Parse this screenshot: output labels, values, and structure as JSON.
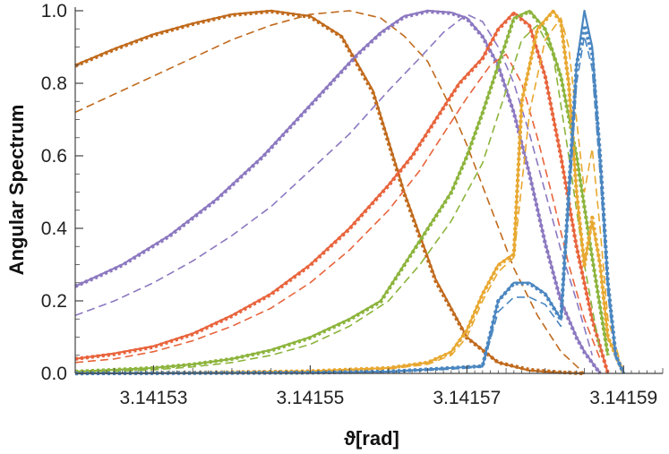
{
  "chart_data": {
    "type": "line",
    "title": "",
    "xlabel": "ϑ[rad]",
    "ylabel": "Angular Spectrum",
    "xlim": [
      3.14152,
      3.141595
    ],
    "ylim": [
      0,
      1.0
    ],
    "x_ticks": [
      {
        "value": 3.14153,
        "label": "3.14153"
      },
      {
        "value": 3.14155,
        "label": "3.14155"
      },
      {
        "value": 3.14157,
        "label": "3.14157"
      },
      {
        "value": 3.14159,
        "label": "3.14159"
      }
    ],
    "y_ticks": [
      {
        "value": 0.0,
        "label": "0.0"
      },
      {
        "value": 0.2,
        "label": "0.2"
      },
      {
        "value": 0.4,
        "label": "0.4"
      },
      {
        "value": 0.6,
        "label": "0.6"
      },
      {
        "value": 0.8,
        "label": "0.8"
      },
      {
        "value": 1.0,
        "label": "1.0"
      }
    ],
    "grid": false,
    "legend": "none",
    "series": [
      {
        "color": "#c06a1c",
        "style": "solid",
        "x": [
          3.14152,
          3.141525,
          3.14153,
          3.141535,
          3.14154,
          3.141545,
          3.14155,
          3.141554,
          3.141558,
          3.141562,
          3.141566,
          3.14157,
          3.141574,
          3.141578,
          3.141582,
          3.141585
        ],
        "y": [
          0.85,
          0.895,
          0.935,
          0.965,
          0.99,
          1.0,
          0.985,
          0.93,
          0.78,
          0.5,
          0.26,
          0.1,
          0.03,
          0.008,
          0.002,
          0.0
        ]
      },
      {
        "color": "#c06a1c",
        "style": "dotted",
        "x": [
          3.14152,
          3.141525,
          3.14153,
          3.141535,
          3.14154,
          3.141545,
          3.14155,
          3.141554,
          3.141558,
          3.141562,
          3.141566,
          3.14157,
          3.141574,
          3.141578,
          3.141582,
          3.141585
        ],
        "y": [
          0.848,
          0.893,
          0.933,
          0.963,
          0.988,
          0.998,
          0.983,
          0.928,
          0.775,
          0.495,
          0.255,
          0.098,
          0.03,
          0.01,
          0.003,
          0.0
        ]
      },
      {
        "color": "#c06a1c",
        "style": "dashed",
        "x": [
          3.14152,
          3.141525,
          3.14153,
          3.141535,
          3.14154,
          3.141545,
          3.14155,
          3.141555,
          3.141559,
          3.141562,
          3.141565,
          3.141568,
          3.14157,
          3.141573,
          3.141576,
          3.141579,
          3.141582,
          3.141585
        ],
        "y": [
          0.72,
          0.77,
          0.82,
          0.87,
          0.92,
          0.96,
          0.99,
          1.0,
          0.98,
          0.93,
          0.86,
          0.73,
          0.63,
          0.46,
          0.29,
          0.16,
          0.06,
          0.0
        ]
      },
      {
        "color": "#8c78c0",
        "style": "solid",
        "x": [
          3.14152,
          3.141523,
          3.141526,
          3.141529,
          3.141532,
          3.141535,
          3.141538,
          3.141541,
          3.141544,
          3.141547,
          3.14155,
          3.141553,
          3.141556,
          3.141559,
          3.141562,
          3.141565,
          3.141568,
          3.14157,
          3.141572,
          3.141574,
          3.141576,
          3.141578,
          3.14158,
          3.141582,
          3.141584,
          3.141585,
          3.141587
        ],
        "y": [
          0.24,
          0.27,
          0.3,
          0.34,
          0.38,
          0.43,
          0.48,
          0.54,
          0.6,
          0.67,
          0.74,
          0.81,
          0.88,
          0.94,
          0.985,
          1.0,
          0.995,
          0.98,
          0.93,
          0.85,
          0.72,
          0.55,
          0.36,
          0.2,
          0.1,
          0.06,
          0.0
        ]
      },
      {
        "color": "#8c78c0",
        "style": "dotted",
        "x": [
          3.14152,
          3.141523,
          3.141526,
          3.141529,
          3.141532,
          3.141535,
          3.141538,
          3.141541,
          3.141544,
          3.141547,
          3.14155,
          3.141553,
          3.141556,
          3.141559,
          3.141562,
          3.141565,
          3.141568,
          3.14157,
          3.141572,
          3.141574,
          3.141576,
          3.141578,
          3.14158,
          3.141582,
          3.141584,
          3.141585,
          3.141587
        ],
        "y": [
          0.24,
          0.268,
          0.298,
          0.338,
          0.378,
          0.428,
          0.478,
          0.538,
          0.598,
          0.668,
          0.738,
          0.808,
          0.878,
          0.938,
          0.983,
          0.998,
          0.993,
          0.978,
          0.928,
          0.848,
          0.718,
          0.548,
          0.358,
          0.198,
          0.098,
          0.058,
          0.0
        ]
      },
      {
        "color": "#8c78c0",
        "style": "dashed",
        "x": [
          3.14152,
          3.141525,
          3.14153,
          3.141535,
          3.14154,
          3.141545,
          3.14155,
          3.141555,
          3.14156,
          3.141564,
          3.141567,
          3.14157,
          3.141572,
          3.141574,
          3.141576,
          3.141578,
          3.14158,
          3.141582,
          3.141584,
          3.141586
        ],
        "y": [
          0.16,
          0.2,
          0.25,
          0.31,
          0.38,
          0.46,
          0.56,
          0.66,
          0.78,
          0.87,
          0.94,
          0.99,
          0.97,
          0.9,
          0.8,
          0.66,
          0.5,
          0.34,
          0.2,
          0.05
        ]
      },
      {
        "color": "#e8643c",
        "style": "solid",
        "x": [
          3.14152,
          3.141525,
          3.14153,
          3.141535,
          3.14154,
          3.141545,
          3.14155,
          3.141555,
          3.14156,
          3.141563,
          3.141566,
          3.141569,
          3.141572,
          3.141574,
          3.141576,
          3.141578,
          3.14158,
          3.141582,
          3.141584,
          3.141586,
          3.141588
        ],
        "y": [
          0.04,
          0.055,
          0.075,
          0.11,
          0.16,
          0.22,
          0.3,
          0.4,
          0.52,
          0.6,
          0.7,
          0.8,
          0.87,
          0.95,
          0.995,
          0.96,
          0.82,
          0.6,
          0.35,
          0.15,
          0.0
        ]
      },
      {
        "color": "#e8643c",
        "style": "dotted",
        "x": [
          3.14152,
          3.141525,
          3.14153,
          3.141535,
          3.14154,
          3.141545,
          3.14155,
          3.141555,
          3.14156,
          3.141563,
          3.141566,
          3.141569,
          3.141572,
          3.141574,
          3.141576,
          3.141578,
          3.14158,
          3.141582,
          3.141584,
          3.141586,
          3.141588
        ],
        "y": [
          0.04,
          0.053,
          0.073,
          0.108,
          0.158,
          0.218,
          0.298,
          0.398,
          0.518,
          0.598,
          0.698,
          0.798,
          0.868,
          0.948,
          0.993,
          0.958,
          0.818,
          0.598,
          0.348,
          0.148,
          0.0
        ]
      },
      {
        "color": "#e8643c",
        "style": "dashed",
        "x": [
          3.14152,
          3.141525,
          3.14153,
          3.141535,
          3.14154,
          3.141545,
          3.14155,
          3.141555,
          3.14156,
          3.141564,
          3.141567,
          3.14157,
          3.141573,
          3.141575,
          3.141577,
          3.141579,
          3.141581,
          3.141583,
          3.141585,
          3.141587
        ],
        "y": [
          0.03,
          0.04,
          0.06,
          0.09,
          0.13,
          0.18,
          0.25,
          0.34,
          0.45,
          0.56,
          0.66,
          0.76,
          0.85,
          0.88,
          0.8,
          0.65,
          0.48,
          0.3,
          0.15,
          0.04
        ]
      },
      {
        "color": "#8cb43c",
        "style": "solid",
        "x": [
          3.14152,
          3.141525,
          3.14153,
          3.141535,
          3.14154,
          3.141545,
          3.14155,
          3.141555,
          3.141559,
          3.141562,
          3.141565,
          3.141568,
          3.14157,
          3.141572,
          3.141574,
          3.141576,
          3.141578,
          3.14158,
          3.141582,
          3.141584,
          3.141586,
          3.141588
        ],
        "y": [
          0.005,
          0.01,
          0.015,
          0.025,
          0.04,
          0.065,
          0.1,
          0.15,
          0.2,
          0.3,
          0.4,
          0.5,
          0.6,
          0.72,
          0.85,
          0.98,
          1.0,
          0.95,
          0.82,
          0.6,
          0.32,
          0.05
        ]
      },
      {
        "color": "#8cb43c",
        "style": "dotted",
        "x": [
          3.14152,
          3.141525,
          3.14153,
          3.141535,
          3.14154,
          3.141545,
          3.14155,
          3.141555,
          3.141559,
          3.141562,
          3.141565,
          3.141568,
          3.14157,
          3.141572,
          3.141574,
          3.141576,
          3.141578,
          3.14158,
          3.141582,
          3.141584,
          3.141586,
          3.141588
        ],
        "y": [
          0.005,
          0.01,
          0.015,
          0.025,
          0.04,
          0.063,
          0.098,
          0.148,
          0.198,
          0.298,
          0.398,
          0.498,
          0.598,
          0.718,
          0.848,
          0.978,
          0.998,
          0.948,
          0.818,
          0.598,
          0.318,
          0.05
        ]
      },
      {
        "color": "#8cb43c",
        "style": "dashed",
        "x": [
          3.14152,
          3.141525,
          3.14153,
          3.141535,
          3.14154,
          3.141545,
          3.14155,
          3.141555,
          3.14156,
          3.141564,
          3.141568,
          3.141572,
          3.141575,
          3.141577,
          3.141579,
          3.141581,
          3.141583,
          3.141585,
          3.141587
        ],
        "y": [
          0.003,
          0.006,
          0.01,
          0.018,
          0.03,
          0.05,
          0.08,
          0.13,
          0.2,
          0.3,
          0.42,
          0.58,
          0.78,
          0.92,
          0.96,
          0.88,
          0.6,
          0.3,
          0.06
        ]
      },
      {
        "color": "#e8a830",
        "style": "solid",
        "x": [
          3.14152,
          3.141535,
          3.14155,
          3.14156,
          3.141565,
          3.141568,
          3.14157,
          3.141572,
          3.141574,
          3.141576,
          3.141577,
          3.141579,
          3.141581,
          3.141582,
          3.141583,
          3.141584,
          3.141585,
          3.141586,
          3.141587,
          3.141588,
          3.14159
        ],
        "y": [
          0.0,
          0.002,
          0.006,
          0.015,
          0.03,
          0.06,
          0.12,
          0.22,
          0.3,
          0.33,
          0.75,
          0.95,
          1.0,
          0.97,
          0.8,
          0.5,
          0.3,
          0.42,
          0.3,
          0.1,
          0.0
        ]
      },
      {
        "color": "#e8a830",
        "style": "dotted",
        "x": [
          3.14152,
          3.141535,
          3.14155,
          3.14156,
          3.141565,
          3.141568,
          3.14157,
          3.141572,
          3.141574,
          3.141576,
          3.141577,
          3.141579,
          3.141581,
          3.141582,
          3.141583,
          3.141584,
          3.141585,
          3.141586,
          3.141587,
          3.141588,
          3.14159
        ],
        "y": [
          0.0,
          0.002,
          0.006,
          0.015,
          0.03,
          0.058,
          0.118,
          0.218,
          0.298,
          0.328,
          0.748,
          0.948,
          0.998,
          0.968,
          0.798,
          0.498,
          0.298,
          0.43,
          0.3,
          0.1,
          0.0
        ]
      },
      {
        "color": "#e8a830",
        "style": "dashed",
        "x": [
          3.14152,
          3.141535,
          3.14155,
          3.14156,
          3.141565,
          3.141568,
          3.14157,
          3.141572,
          3.141574,
          3.141576,
          3.141578,
          3.14158,
          3.141582,
          3.141583,
          3.141584,
          3.141585,
          3.141586,
          3.141587,
          3.141588,
          3.14159
        ],
        "y": [
          0.0,
          0.002,
          0.005,
          0.012,
          0.025,
          0.05,
          0.1,
          0.2,
          0.28,
          0.32,
          0.72,
          0.92,
          0.98,
          0.9,
          0.7,
          0.5,
          0.62,
          0.4,
          0.15,
          0.0
        ]
      },
      {
        "color": "#4a86c0",
        "style": "solid",
        "x": [
          3.14152,
          3.14155,
          3.14156,
          3.141568,
          3.141572,
          3.141574,
          3.141576,
          3.141578,
          3.14158,
          3.141582,
          3.141583,
          3.141584,
          3.141585,
          3.141586,
          3.141587,
          3.141588,
          3.141589,
          3.14159
        ],
        "y": [
          0.0,
          0.002,
          0.005,
          0.015,
          0.02,
          0.2,
          0.25,
          0.25,
          0.22,
          0.15,
          0.5,
          0.85,
          1.0,
          0.9,
          0.6,
          0.25,
          0.05,
          0.0
        ]
      },
      {
        "color": "#4a86c0",
        "style": "dotted",
        "x": [
          3.14152,
          3.14155,
          3.14156,
          3.141568,
          3.141572,
          3.141574,
          3.141576,
          3.141578,
          3.14158,
          3.141582,
          3.141583,
          3.141584,
          3.141585,
          3.141586,
          3.141587,
          3.141588,
          3.141589,
          3.14159
        ],
        "y": [
          0.0,
          0.002,
          0.005,
          0.015,
          0.02,
          0.2,
          0.248,
          0.248,
          0.218,
          0.148,
          0.5,
          0.85,
          0.96,
          0.88,
          0.6,
          0.25,
          0.05,
          0.0
        ]
      },
      {
        "color": "#4a86c0",
        "style": "dashed",
        "x": [
          3.14152,
          3.14155,
          3.14156,
          3.141568,
          3.141572,
          3.141574,
          3.141576,
          3.141578,
          3.14158,
          3.141582,
          3.141583,
          3.141584,
          3.141585,
          3.141586,
          3.141587,
          3.141588,
          3.141589,
          3.14159
        ],
        "y": [
          0.0,
          0.002,
          0.004,
          0.012,
          0.018,
          0.17,
          0.21,
          0.21,
          0.19,
          0.13,
          0.45,
          0.8,
          0.93,
          0.84,
          0.55,
          0.22,
          0.04,
          0.0
        ]
      }
    ]
  }
}
